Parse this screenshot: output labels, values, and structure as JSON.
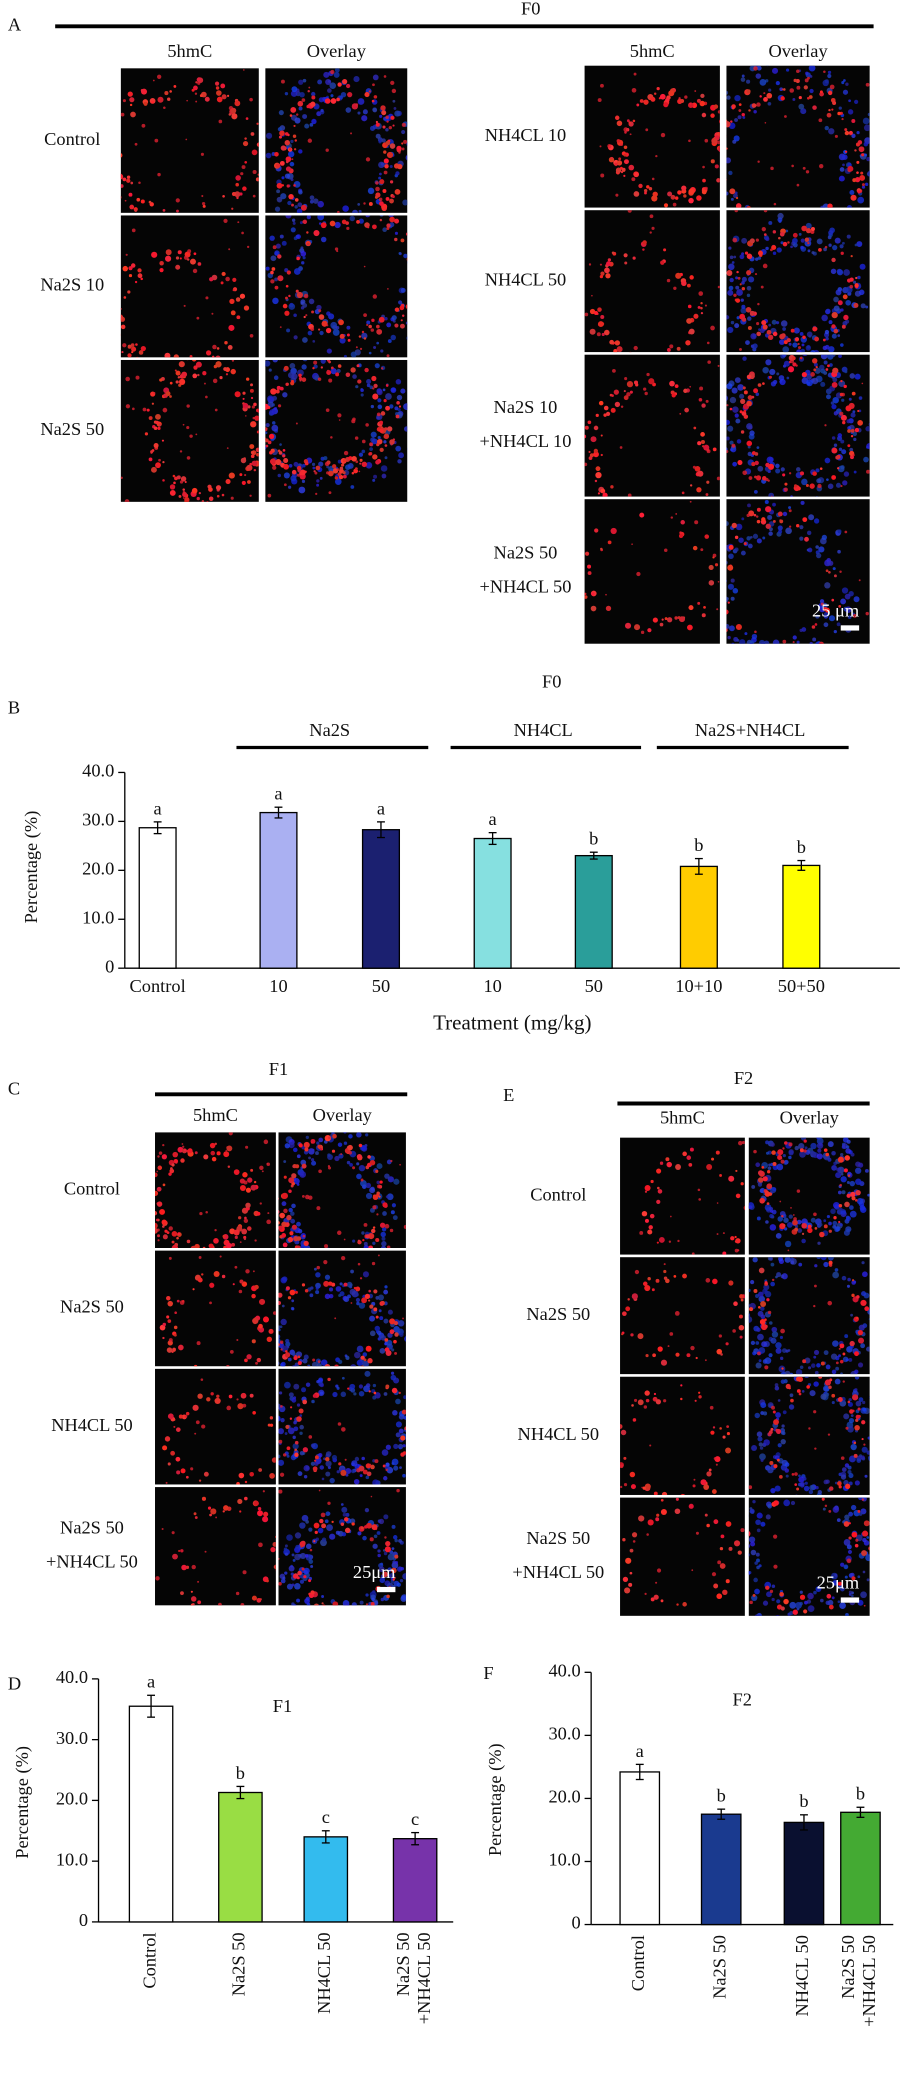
{
  "panels": {
    "A": {
      "letter": "A",
      "title": "F0",
      "left": {
        "columns": [
          "5hmC",
          "Overlay"
        ],
        "rows": [
          [
            "Control"
          ],
          [
            "Na2S 10"
          ],
          [
            "Na2S 50"
          ]
        ]
      },
      "right": {
        "columns": [
          "5hmC",
          "Overlay"
        ],
        "rows": [
          [
            "NH4CL 10"
          ],
          [
            "NH4CL 50"
          ],
          [
            "Na2S 10",
            "+NH4CL 10"
          ],
          [
            "Na2S 50",
            "+NH4CL 50"
          ]
        ],
        "scale_bar": "25 μm"
      }
    },
    "C": {
      "letter": "C",
      "title": "F1",
      "columns": [
        "5hmC",
        "Overlay"
      ],
      "rows": [
        [
          "Control"
        ],
        [
          "Na2S 50"
        ],
        [
          "NH4CL 50"
        ],
        [
          "Na2S 50",
          "+NH4CL 50"
        ]
      ],
      "scale_bar": "25μm"
    },
    "E": {
      "letter": "E",
      "title": "F2",
      "columns": [
        "5hmC",
        "Overlay"
      ],
      "rows": [
        [
          "Control"
        ],
        [
          "Na2S 50"
        ],
        [
          "NH4CL 50"
        ],
        [
          "Na2S 50",
          "+NH4CL 50"
        ]
      ],
      "scale_bar": "25μm"
    }
  },
  "chart_data": [
    {
      "type": "bar",
      "label": "B",
      "title": "F0",
      "y_label": "Percentage (%)",
      "x_label": "Treatment (mg/kg)",
      "groups": [
        "Na2S",
        "NH4CL",
        "Na2S+NH4CL"
      ],
      "categories": [
        [
          "Control"
        ],
        [
          "10"
        ],
        [
          "50"
        ],
        [
          "10"
        ],
        [
          "50"
        ],
        [
          "10+10"
        ],
        [
          "50+50"
        ]
      ],
      "values": [
        28.7,
        31.8,
        28.3,
        26.5,
        23.0,
        20.8,
        21.0
      ],
      "errors": [
        1.2,
        1.1,
        1.6,
        1.2,
        0.7,
        1.6,
        1.0
      ],
      "letters": [
        "a",
        "a",
        "a",
        "a",
        "b",
        "b",
        "b"
      ],
      "colors": [
        "#ffffff",
        "#aab0f2",
        "#1b2070",
        "#86e0e0",
        "#2a9e9a",
        "#ffcc00",
        "#ffff00"
      ],
      "ylim": [
        0,
        40
      ],
      "yticks": [
        0,
        {
          "value": 10,
          "label": "10.0"
        },
        {
          "value": 20,
          "label": "20.0"
        },
        {
          "value": 30,
          "label": "30.0"
        },
        {
          "value": 40,
          "label": "40.0"
        }
      ]
    },
    {
      "type": "bar",
      "label": "D",
      "title": "F1",
      "y_label": "Percentage (%)",
      "categories": [
        [
          "Control"
        ],
        [
          "Na2S 50"
        ],
        [
          "NH4CL 50"
        ],
        [
          "Na2S 50",
          "+NH4CL 50"
        ]
      ],
      "values": [
        35.5,
        21.3,
        14.0,
        13.7
      ],
      "errors": [
        1.8,
        1.0,
        1.0,
        1.0
      ],
      "letters": [
        "a",
        "b",
        "c",
        "c"
      ],
      "colors": [
        "#ffffff",
        "#99dd44",
        "#33bbee",
        "#7733aa"
      ],
      "ylim": [
        0,
        40
      ],
      "yticks": [
        0,
        {
          "value": 10,
          "label": "10.0"
        },
        {
          "value": 20,
          "label": "20.0"
        },
        {
          "value": 30,
          "label": "30.0"
        },
        {
          "value": 40,
          "label": "40.0"
        }
      ]
    },
    {
      "type": "bar",
      "label": "F",
      "title": "F2",
      "y_label": "Percentage (%)",
      "categories": [
        [
          "Control"
        ],
        [
          "Na2S 50"
        ],
        [
          "NH4CL 50"
        ],
        [
          "Na2S 50",
          "+NH4CL 50"
        ]
      ],
      "values": [
        24.2,
        17.5,
        16.2,
        17.8
      ],
      "errors": [
        1.2,
        0.8,
        1.2,
        0.8
      ],
      "letters": [
        "a",
        "b",
        "b",
        "b"
      ],
      "colors": [
        "#ffffff",
        "#1a3a8f",
        "#0a1030",
        "#44aa33"
      ],
      "ylim": [
        0,
        40
      ],
      "yticks": [
        0,
        {
          "value": 10,
          "label": "10.0"
        },
        {
          "value": 20,
          "label": "20.0"
        },
        {
          "value": 30,
          "label": "30.0"
        },
        {
          "value": 40,
          "label": "40.0"
        }
      ]
    }
  ]
}
